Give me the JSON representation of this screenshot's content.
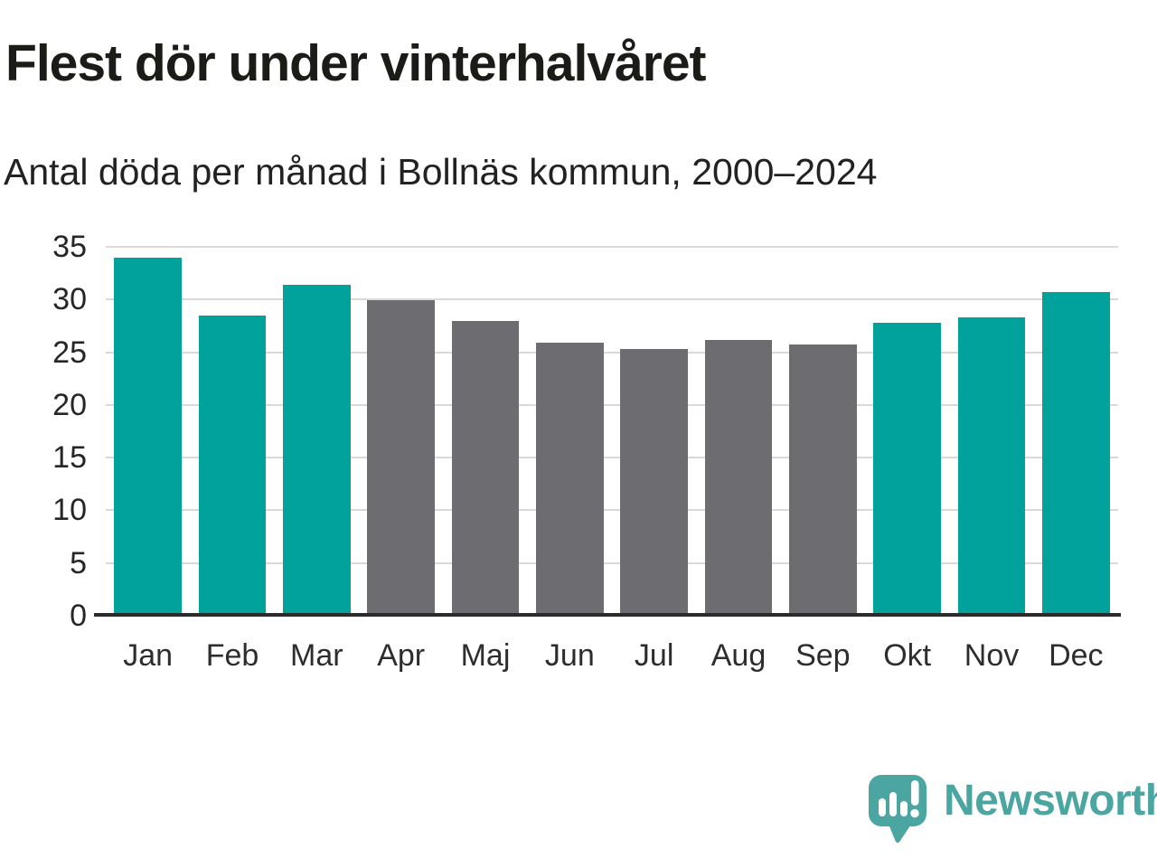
{
  "header": {
    "title": "Flest dör under vinterhalvåret",
    "subtitle": "Antal döda per månad i Bollnäs kommun, 2000–2024"
  },
  "chart_data": {
    "type": "bar",
    "title": "Flest dör under vinterhalvåret",
    "subtitle": "Antal döda per månad i Bollnäs kommun, 2000–2024",
    "categories": [
      "Jan",
      "Feb",
      "Mar",
      "Apr",
      "Maj",
      "Jun",
      "Jul",
      "Aug",
      "Sep",
      "Okt",
      "Nov",
      "Dec"
    ],
    "values": [
      34.0,
      28.5,
      31.4,
      29.9,
      28.0,
      25.9,
      25.3,
      26.2,
      25.7,
      27.8,
      28.3,
      30.7
    ],
    "bar_color_keys": [
      "winter",
      "winter",
      "winter",
      "summer",
      "summer",
      "summer",
      "summer",
      "summer",
      "summer",
      "winter",
      "winter",
      "winter"
    ],
    "colors": {
      "winter": "#00A29B",
      "summer": "#6D6C71"
    },
    "xlabel": "",
    "ylabel": "",
    "ylim": [
      0,
      35
    ],
    "yticks": [
      0,
      5,
      10,
      15,
      20,
      25,
      30,
      35
    ],
    "grid": true,
    "legend": "none"
  },
  "footer": {
    "brand_label": "Newsworthy",
    "brand_color": "#4BA5A1",
    "logo_icon": "newsworthy-speech-bubble-bar-chart-icon"
  }
}
